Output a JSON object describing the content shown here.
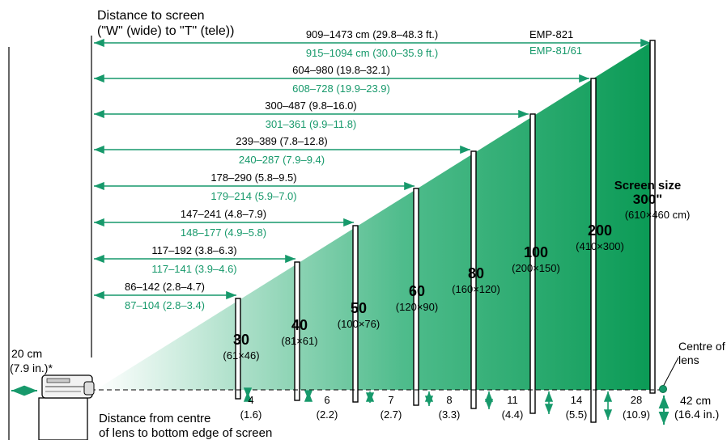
{
  "header": {
    "line1": "Distance to screen",
    "line2": "(\"W\" (wide) to \"T\" (tele))"
  },
  "models": {
    "black": "EMP-821",
    "green": "EMP-81/61"
  },
  "distances": [
    {
      "black": "909–1473 cm (29.8–48.3 ft.)",
      "green": "915–1094 cm (30.0–35.9 ft.)"
    },
    {
      "black": "604–980 (19.8–32.1)",
      "green": "608–728 (19.9–23.9)"
    },
    {
      "black": "300–487 (9.8–16.0)",
      "green": "301–361 (9.9–11.8)"
    },
    {
      "black": "239–389 (7.8–12.8)",
      "green": "240–287 (7.9–9.4)"
    },
    {
      "black": "178–290 (5.8–9.5)",
      "green": "179–214 (5.9–7.0)"
    },
    {
      "black": "147–241 (4.8–7.9)",
      "green": "148–177 (4.9–5.8)"
    },
    {
      "black": "117–192 (3.8–6.3)",
      "green": "117–141 (3.9–4.6)"
    },
    {
      "black": "86–142 (2.8–4.7)",
      "green": "87–104 (2.8–3.4)"
    }
  ],
  "screens": [
    {
      "size": "30",
      "dims": "(61×46)"
    },
    {
      "size": "40",
      "dims": "(81×61)"
    },
    {
      "size": "50",
      "dims": "(100×76)"
    },
    {
      "size": "60",
      "dims": "(120×90)"
    },
    {
      "size": "80",
      "dims": "(160×120)"
    },
    {
      "size": "100",
      "dims": "(200×150)"
    },
    {
      "size": "200",
      "dims": "(410×300)"
    }
  ],
  "largest_screen": {
    "caption": "Screen size",
    "size": "300\"",
    "dims": "(610×460 cm)"
  },
  "offsets": [
    {
      "cm": "4",
      "in": "(1.6)"
    },
    {
      "cm": "6",
      "in": "(2.2)"
    },
    {
      "cm": "7",
      "in": "(2.7)"
    },
    {
      "cm": "8",
      "in": "(3.3)"
    },
    {
      "cm": "11",
      "in": "(4.4)"
    },
    {
      "cm": "14",
      "in": "(5.5)"
    },
    {
      "cm": "28",
      "in": "(10.9)"
    }
  ],
  "clearance": {
    "line1": "20 cm",
    "line2": "(7.9 in.)*"
  },
  "lens_centre": {
    "line1": "Centre of",
    "line2": "lens"
  },
  "lens_height": {
    "line1": "42 cm",
    "line2": "(16.4 in.)"
  },
  "footer": {
    "line1": "Distance from centre",
    "line2": "of lens to bottom edge of screen"
  },
  "colors": {
    "arrow_green": "#17996b",
    "beam_green": "#0a9a55",
    "text_black": "#000000"
  }
}
